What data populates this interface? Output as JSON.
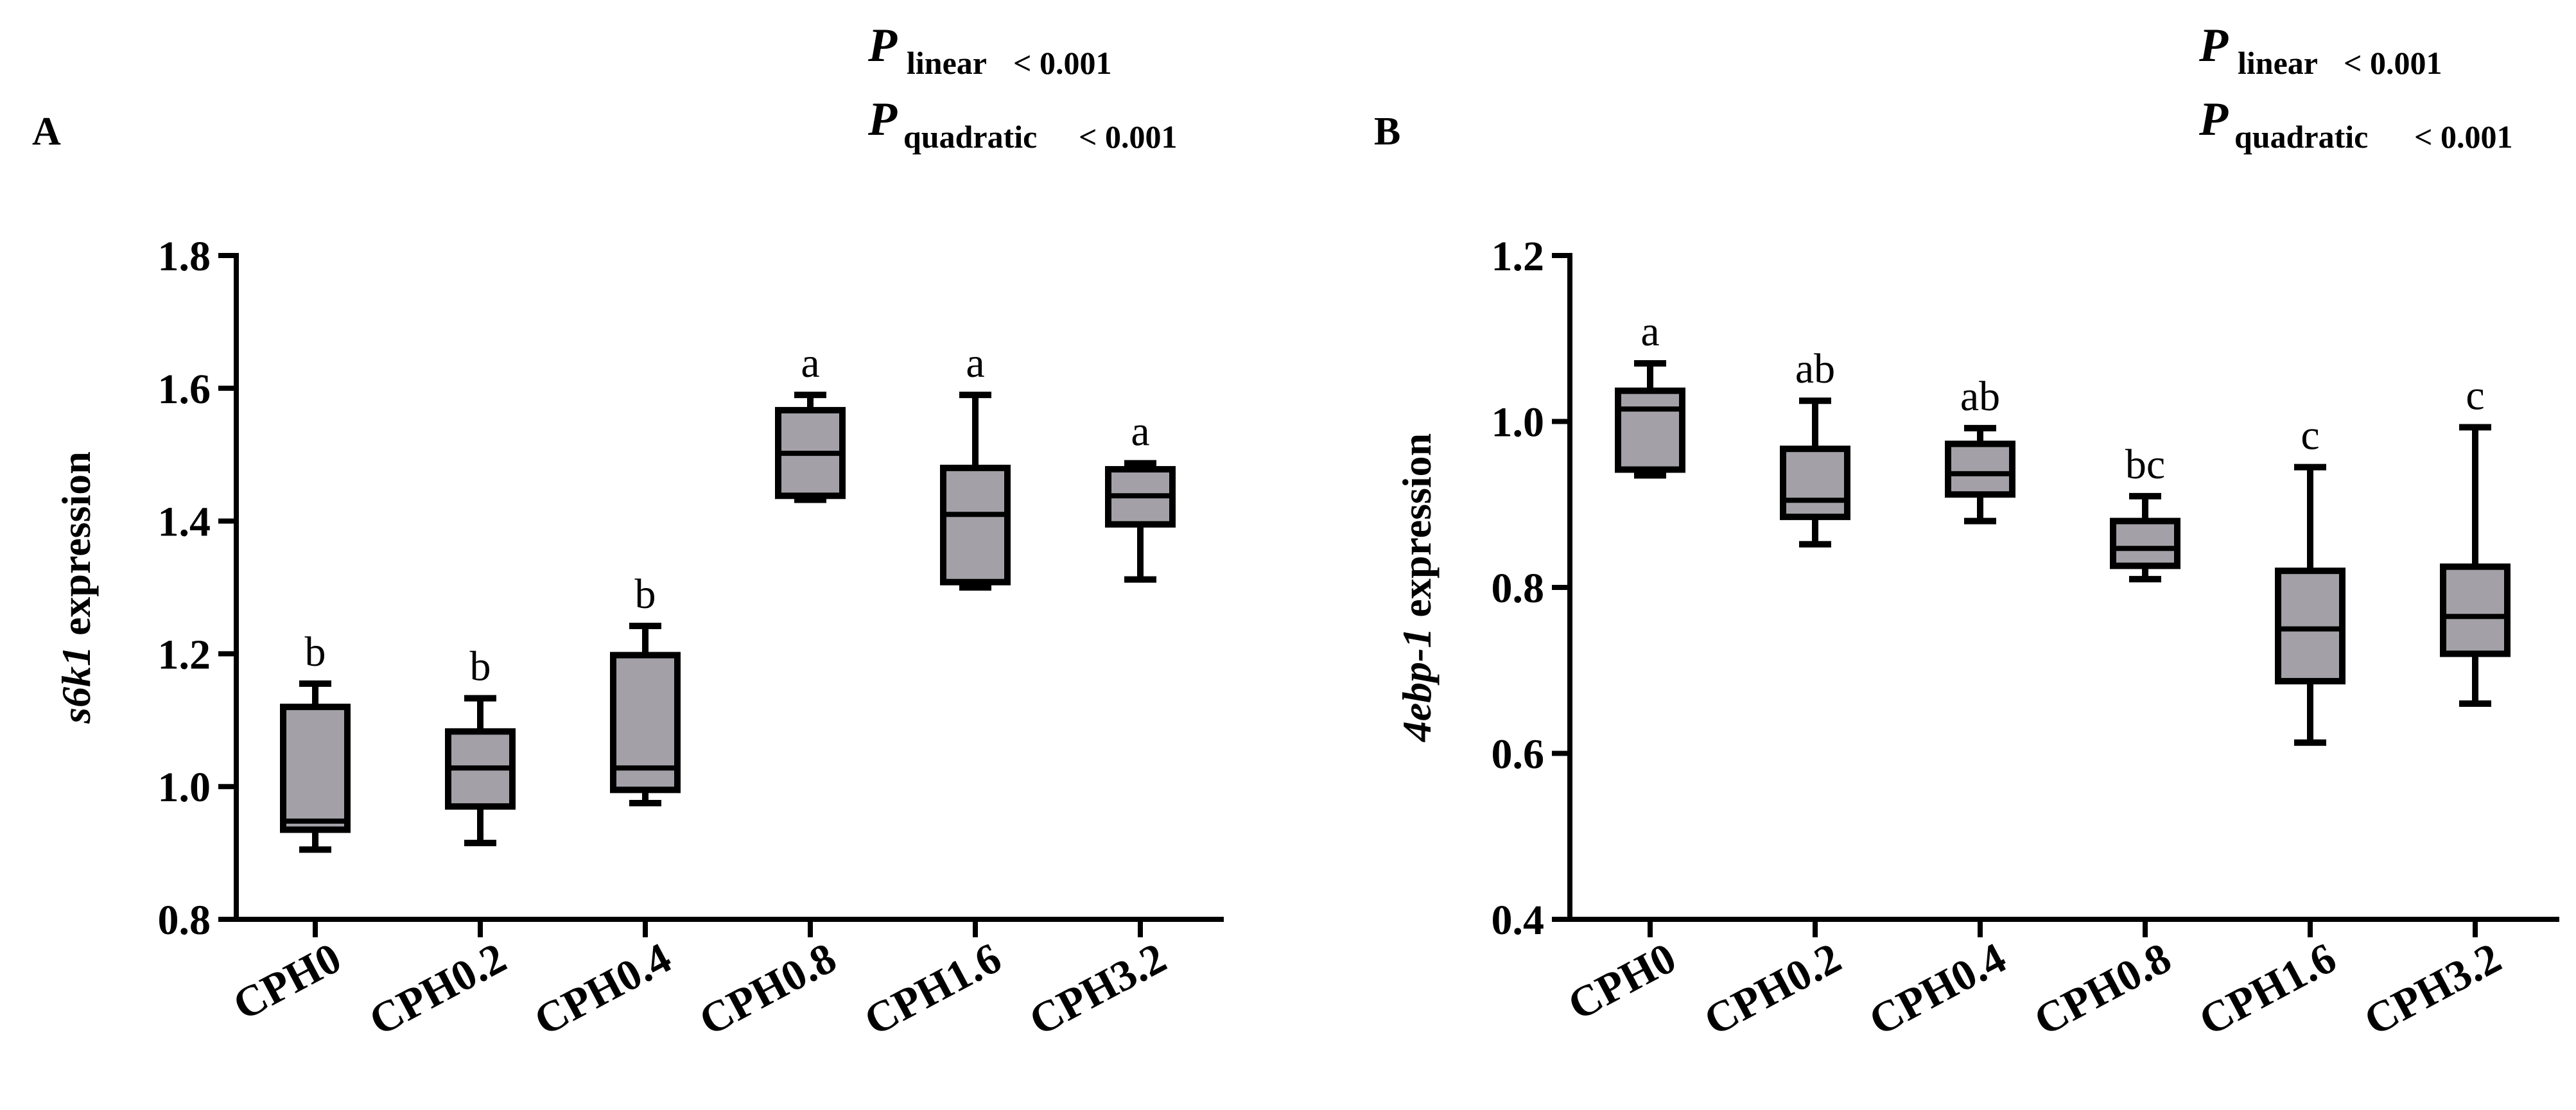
{
  "chart_data": [
    {
      "panel": "A",
      "type": "box",
      "ylabel_italic": "s6k1",
      "ylabel_rest": " expression",
      "ylim": [
        0.8,
        1.8
      ],
      "yticks": [
        0.8,
        1.0,
        1.2,
        1.4,
        1.6,
        1.8
      ],
      "ytick_labels": [
        "0.8",
        "1.0",
        "1.2",
        "1.4",
        "1.6",
        "1.8"
      ],
      "categories": [
        "CPH0",
        "CPH0.2",
        "CPH0.4",
        "CPH0.8",
        "CPH1.6",
        "CPH3.2"
      ],
      "boxes": [
        {
          "min": 0.905,
          "q1": 0.935,
          "median": 0.948,
          "q3": 1.12,
          "max": 1.155
        },
        {
          "min": 0.915,
          "q1": 0.97,
          "median": 1.028,
          "q3": 1.083,
          "max": 1.133
        },
        {
          "min": 0.975,
          "q1": 0.995,
          "median": 1.028,
          "q3": 1.198,
          "max": 1.242
        },
        {
          "min": 1.432,
          "q1": 1.438,
          "median": 1.502,
          "q3": 1.567,
          "max": 1.59
        },
        {
          "min": 1.3,
          "q1": 1.308,
          "median": 1.41,
          "q3": 1.48,
          "max": 1.59
        },
        {
          "min": 1.312,
          "q1": 1.395,
          "median": 1.438,
          "q3": 1.478,
          "max": 1.487
        }
      ],
      "significance": [
        "b",
        "b",
        "b",
        "a",
        "a",
        "a"
      ],
      "p_linear": {
        "symbol": "P",
        "sub": "linear",
        "text": "< 0.001"
      },
      "p_quadratic": {
        "symbol": "P",
        "sub": "quadratic",
        "text": "< 0.001"
      }
    },
    {
      "panel": "B",
      "type": "box",
      "ylabel_italic": "4ebp-1",
      "ylabel_rest": " expression",
      "ylim": [
        0.4,
        1.2
      ],
      "yticks": [
        0.4,
        0.6,
        0.8,
        1.0,
        1.2
      ],
      "ytick_labels": [
        "0.4",
        "0.6",
        "0.8",
        "1.0",
        "1.2"
      ],
      "categories": [
        "CPH0",
        "CPH0.2",
        "CPH0.4",
        "CPH0.8",
        "CPH1.6",
        "CPH3.2"
      ],
      "boxes": [
        {
          "min": 0.935,
          "q1": 0.942,
          "median": 1.015,
          "q3": 1.037,
          "max": 1.07
        },
        {
          "min": 0.852,
          "q1": 0.885,
          "median": 0.905,
          "q3": 0.967,
          "max": 1.025
        },
        {
          "min": 0.88,
          "q1": 0.912,
          "median": 0.937,
          "q3": 0.973,
          "max": 0.992
        },
        {
          "min": 0.81,
          "q1": 0.826,
          "median": 0.847,
          "q3": 0.88,
          "max": 0.91
        },
        {
          "min": 0.613,
          "q1": 0.687,
          "median": 0.75,
          "q3": 0.82,
          "max": 0.945
        },
        {
          "min": 0.66,
          "q1": 0.72,
          "median": 0.765,
          "q3": 0.825,
          "max": 0.993
        }
      ],
      "significance": [
        "a",
        "ab",
        "ab",
        "bc",
        "c",
        "c"
      ],
      "p_linear": {
        "symbol": "P",
        "sub": "linear",
        "text": "< 0.001"
      },
      "p_quadratic": {
        "symbol": "P",
        "sub": "quadratic",
        "text": "< 0.001"
      }
    }
  ]
}
